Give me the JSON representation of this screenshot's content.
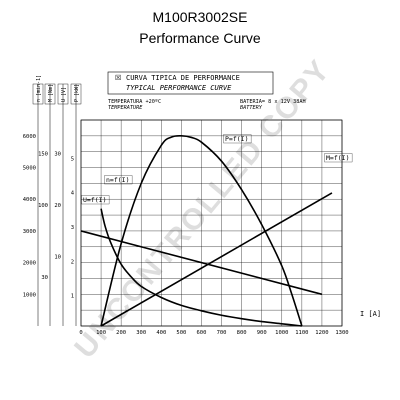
{
  "header": {
    "title": "M100R3002SE",
    "subtitle": "Performance Curve"
  },
  "watermark": "UNCONTROLLED COPY",
  "chart_data": {
    "type": "line",
    "caption_es": "CURVA TIPICA DE PERFORMANCE",
    "caption_en": "TYPICAL PERFORMANCE CURVE",
    "caption_glyph": "☒",
    "temperature_es": "TEMPERATURA +20ºC",
    "temperature_en": "TEMPERATURE",
    "battery_es": "BATERIA= 8 x 12V 38AH",
    "battery_en": "BATTERY",
    "xlabel": "I [A]",
    "xlim": [
      0,
      1300
    ],
    "x_ticks": [
      0,
      100,
      200,
      300,
      400,
      500,
      600,
      700,
      800,
      900,
      1000,
      1100,
      1200,
      1300
    ],
    "grid": true,
    "axes": [
      {
        "label": "n [min-1]",
        "ticks": [
          {
            "v": 1000,
            "label": "1000"
          },
          {
            "v": 2000,
            "label": "2000"
          },
          {
            "v": 3000,
            "label": "3000"
          },
          {
            "v": 4000,
            "label": "4000"
          },
          {
            "v": 5000,
            "label": "5000"
          },
          {
            "v": 6000,
            "label": "6000"
          }
        ]
      },
      {
        "label": "M [Nm]",
        "ticks": [
          {
            "v": 30,
            "label": "30"
          },
          {
            "v": 100,
            "label": "100"
          },
          {
            "v": 150,
            "label": "150"
          }
        ]
      },
      {
        "label": "U [V]",
        "ticks": [
          {
            "v": 10,
            "label": "10"
          },
          {
            "v": 20,
            "label": "20"
          },
          {
            "v": 30,
            "label": "30"
          }
        ]
      },
      {
        "label": "P [kW]",
        "ticks": [
          {
            "v": 1,
            "label": "1"
          },
          {
            "v": 2,
            "label": "2"
          },
          {
            "v": 3,
            "label": "3"
          },
          {
            "v": 4,
            "label": "4"
          },
          {
            "v": 5,
            "label": "5"
          }
        ]
      }
    ],
    "series": [
      {
        "name": "n=f(I)",
        "axis": 0,
        "x": [
          100,
          120,
          150,
          200,
          250,
          300,
          400,
          500,
          600,
          700,
          800,
          900,
          1000,
          1100
        ],
        "y": [
          3700,
          3150,
          2600,
          1950,
          1550,
          1250,
          900,
          650,
          480,
          340,
          230,
          140,
          70,
          0
        ]
      },
      {
        "name": "P=f(I)",
        "axis": 0,
        "x": [
          100,
          200,
          300,
          400,
          450,
          500,
          550,
          600,
          700,
          800,
          900,
          1000,
          1050,
          1100
        ],
        "y": [
          0,
          2600,
          4500,
          5700,
          5960,
          6000,
          5950,
          5800,
          5200,
          4300,
          3200,
          1900,
          1000,
          0
        ]
      },
      {
        "name": "M=f(I)",
        "axis": 0,
        "x": [
          100,
          1250
        ],
        "y": [
          0,
          4200
        ]
      },
      {
        "name": "U=f(I)",
        "axis": 0,
        "x": [
          0,
          1200
        ],
        "y": [
          3000,
          1000
        ]
      }
    ],
    "series_label_colors": "#000000"
  }
}
